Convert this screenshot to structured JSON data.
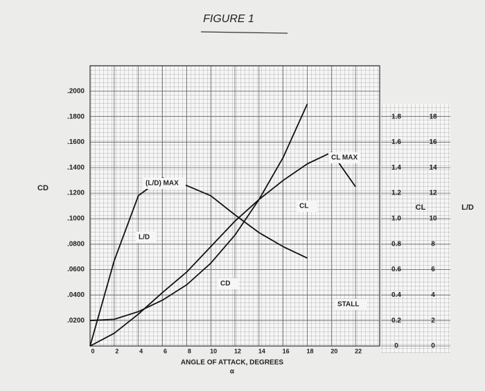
{
  "chart_data": {
    "type": "line",
    "title": "FIGURE 1",
    "x_label": "ANGLE OF ATTACK, DEGREES",
    "x_sublabel": "α",
    "y_label": "CD",
    "y2_label": "CL",
    "y3_label": "L/D",
    "x": [
      0,
      2,
      4,
      6,
      8,
      10,
      12,
      14,
      16,
      18,
      20,
      22
    ],
    "xlim": [
      0,
      24
    ],
    "xticks": [
      0,
      2,
      4,
      6,
      8,
      10,
      12,
      14,
      16,
      18,
      20,
      22
    ],
    "ylim": [
      0,
      0.22
    ],
    "yticks": [
      {
        "value": 0.02,
        "label": ".0200"
      },
      {
        "value": 0.04,
        "label": ".0400"
      },
      {
        "value": 0.06,
        "label": ".0600"
      },
      {
        "value": 0.08,
        "label": ".0800"
      },
      {
        "value": 0.1,
        "label": ".1000"
      },
      {
        "value": 0.12,
        "label": ".1200"
      },
      {
        "value": 0.14,
        "label": ".1400"
      },
      {
        "value": 0.16,
        "label": ".1600"
      },
      {
        "value": 0.18,
        "label": ".1800"
      },
      {
        "value": 0.2,
        "label": ".2000"
      }
    ],
    "y2lim": [
      0,
      2.2
    ],
    "y2ticks": [
      0,
      0.2,
      0.4,
      0.6,
      0.8,
      {
        "value": 1,
        "label": "1.0"
      },
      1.2,
      1.4,
      1.6,
      1.8
    ],
    "y3lim": [
      0,
      22
    ],
    "y3ticks": [
      0,
      2,
      4,
      6,
      8,
      10,
      12,
      14,
      16,
      18
    ],
    "grid": true,
    "series": [
      {
        "name": "CD",
        "color": "#111111",
        "axis": "y",
        "values": [
          0.02,
          0.021,
          0.027,
          0.036,
          0.048,
          0.065,
          0.087,
          0.115,
          0.148,
          0.19,
          null,
          null
        ]
      },
      {
        "name": "CL",
        "color": "#111111",
        "axis": "y2",
        "values": [
          0,
          0.1,
          0.25,
          0.42,
          0.58,
          0.78,
          0.98,
          1.15,
          1.3,
          1.43,
          1.52,
          1.25
        ]
      },
      {
        "name": "L/D",
        "color": "#111111",
        "axis": "y3",
        "values": [
          0,
          6.7,
          11.8,
          13.2,
          12.6,
          11.8,
          10.3,
          8.9,
          7.8,
          6.9,
          null,
          null
        ]
      }
    ],
    "annotations": [
      "(L/D) MAX",
      "CL MAX",
      "STALL"
    ]
  }
}
